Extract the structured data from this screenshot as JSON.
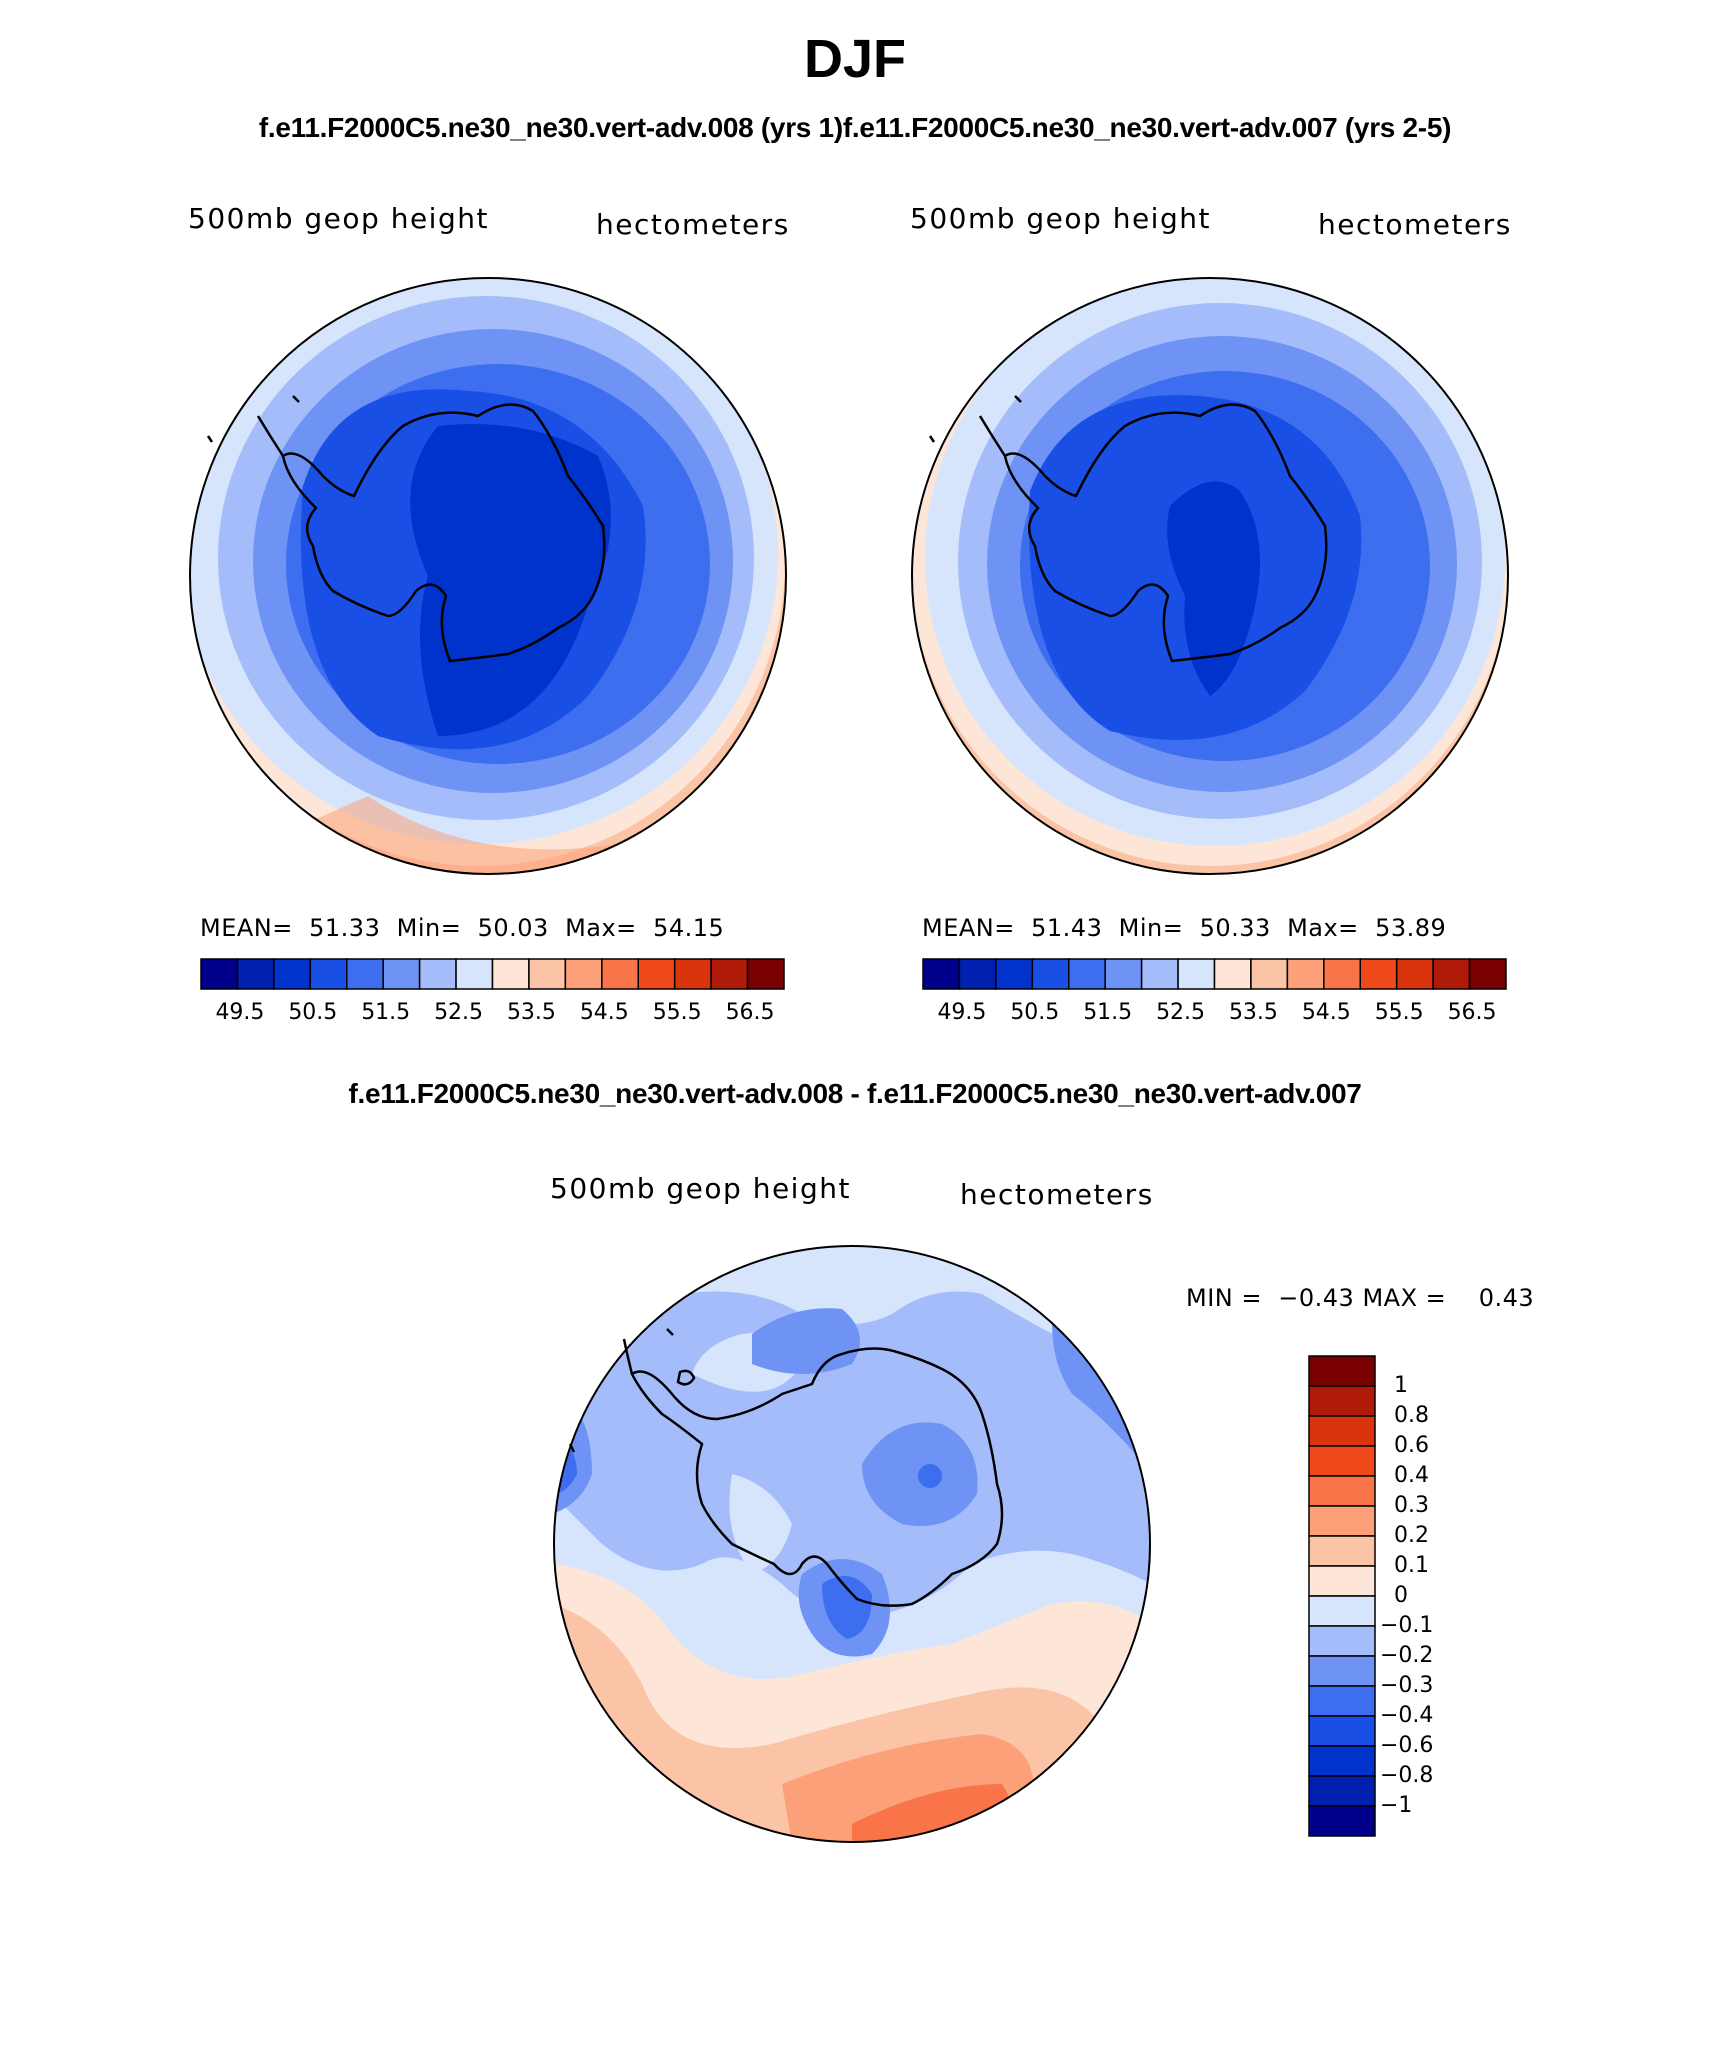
{
  "title": "DJF",
  "case_titles": "f.e11.F2000C5.ne30_ne30.vert-adv.008 (yrs 1)f.e11.F2000C5.ne30_ne30.vert-adv.007 (yrs 2-5)",
  "diff_title": "f.e11.F2000C5.ne30_ne30.vert-adv.008 - f.e11.F2000C5.ne30_ne30.vert-adv.007",
  "panels": [
    {
      "variable": "500mb geop height",
      "units": "hectometers",
      "mean_label": "MEAN=",
      "mean": "51.33",
      "min_label": "Min=",
      "min": "50.03",
      "max_label": "Max=",
      "max": "54.15"
    },
    {
      "variable": "500mb geop height",
      "units": "hectometers",
      "mean_label": "MEAN=",
      "mean": "51.43",
      "min_label": "Min=",
      "min": "50.33",
      "max_label": "Max=",
      "max": "53.89"
    }
  ],
  "diff_panel": {
    "variable": "500mb geop height",
    "units": "hectometers",
    "min_label": "MIN =",
    "min": "−0.43",
    "max_label": "MAX =",
    "max": "0.43"
  },
  "colorbar": {
    "colors": [
      "#00008b",
      "#0020b0",
      "#0033cc",
      "#1a4fe6",
      "#3d6ef0",
      "#6e93f5",
      "#a4bdfa",
      "#d6e5fc",
      "#fde6d8",
      "#fcc4a6",
      "#fba079",
      "#fa7449",
      "#f04a1c",
      "#d9340c",
      "#b01a08",
      "#7a0000"
    ],
    "ticks": [
      "49.5",
      "50.5",
      "51.5",
      "52.5",
      "53.5",
      "54.5",
      "55.5",
      "56.5"
    ],
    "tick_values": [
      49.5,
      50.5,
      51.5,
      52.5,
      53.5,
      54.5,
      55.5,
      56.5
    ]
  },
  "diff_colorbar": {
    "colors": [
      "#00008b",
      "#0020b0",
      "#0033cc",
      "#1a4fe6",
      "#3d6ef0",
      "#6e93f5",
      "#a4bdfa",
      "#d6e5fc",
      "#fde6d8",
      "#fcc4a6",
      "#fba079",
      "#fa7449",
      "#f04a1c",
      "#d9340c",
      "#b01a08",
      "#7a0000"
    ],
    "levels": [
      "1",
      "0.8",
      "0.6",
      "0.4",
      "0.3",
      "0.2",
      "0.1",
      "0",
      "−0.1",
      "−0.2",
      "−0.3",
      "−0.4",
      "−0.6",
      "−0.8",
      "−1"
    ]
  }
}
